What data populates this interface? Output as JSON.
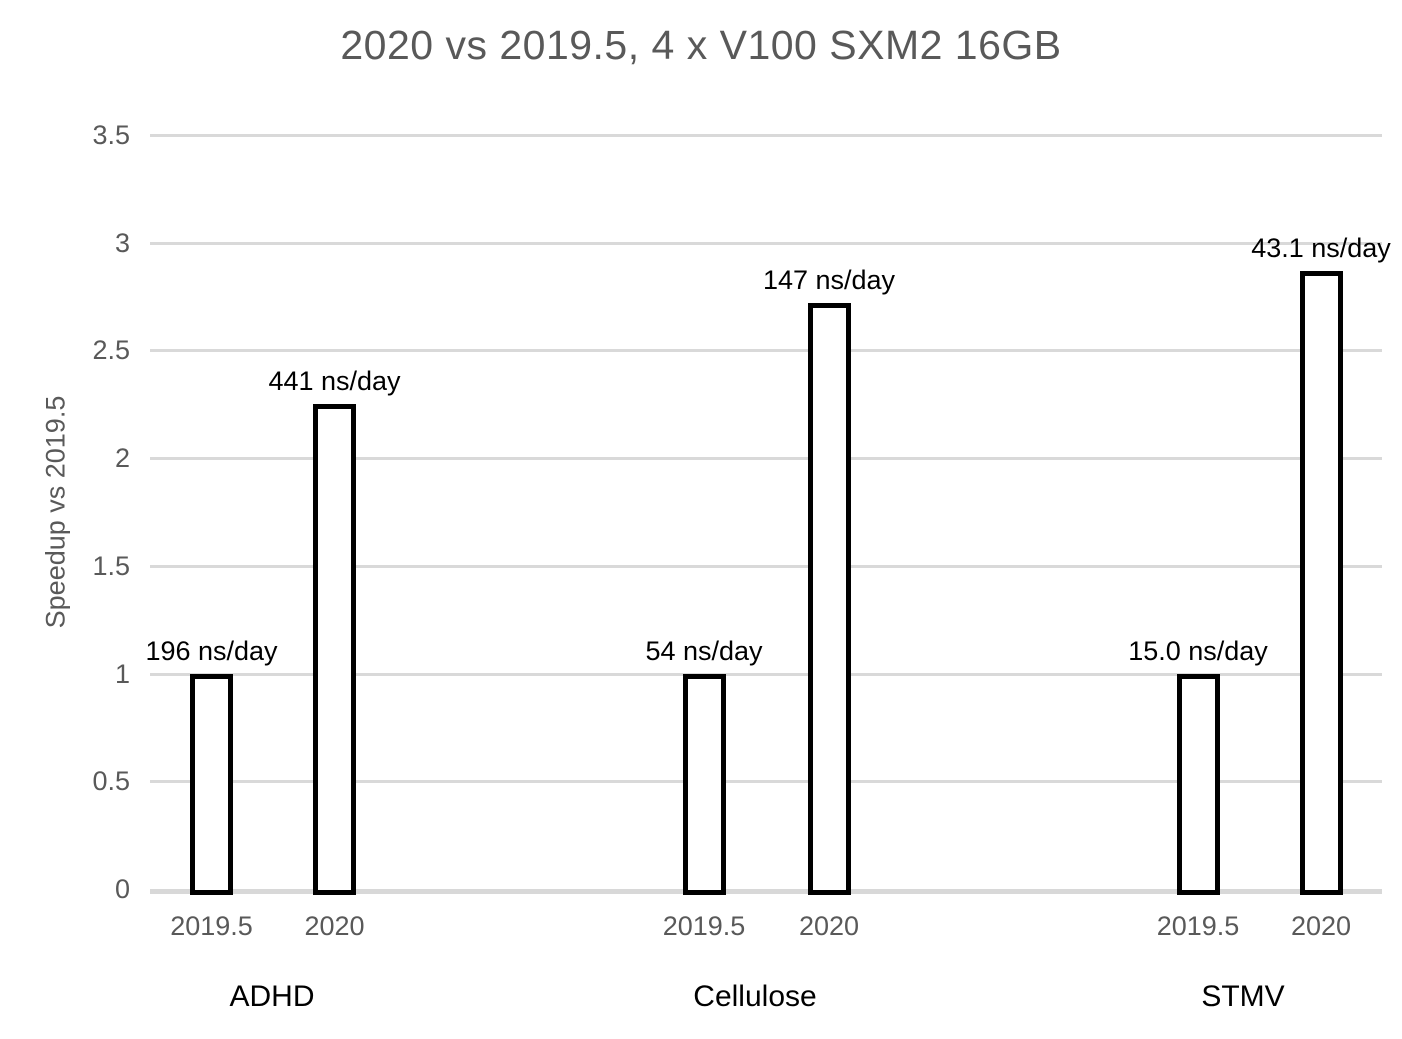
{
  "chart_data": {
    "type": "bar",
    "title": "2020 vs 2019.5, 4 x V100 SXM2 16GB",
    "ylabel": "Speedup vs 2019.5",
    "xlabel": "",
    "ylim": [
      0,
      3.5
    ],
    "ytick_labels": [
      "0",
      "0.5",
      "1",
      "1.5",
      "2",
      "2.5",
      "3",
      "3.5"
    ],
    "grid": true,
    "legend": "none",
    "bar_fill_color": "#ffffff",
    "bar_border_color": "#000000",
    "gridline_color": "#d9d9d9",
    "axis_text_color": "#595959",
    "title_color": "#595959",
    "annotation_text_color": "#000000",
    "groups": [
      {
        "label": "ADHD",
        "bars": [
          {
            "year": "2019.5",
            "speedup": 1.0,
            "throughput_label": "196 ns/day"
          },
          {
            "year": "2020",
            "speedup": 2.25,
            "throughput_label": "441 ns/day"
          }
        ]
      },
      {
        "label": "Cellulose",
        "bars": [
          {
            "year": "2019.5",
            "speedup": 1.0,
            "throughput_label": "54 ns/day"
          },
          {
            "year": "2020",
            "speedup": 2.72,
            "throughput_label": "147 ns/day"
          }
        ]
      },
      {
        "label": "STMV",
        "bars": [
          {
            "year": "2019.5",
            "speedup": 1.0,
            "throughput_label": "15.0 ns/day"
          },
          {
            "year": "2020",
            "speedup": 2.87,
            "throughput_label": "43.1 ns/day"
          }
        ]
      }
    ]
  }
}
